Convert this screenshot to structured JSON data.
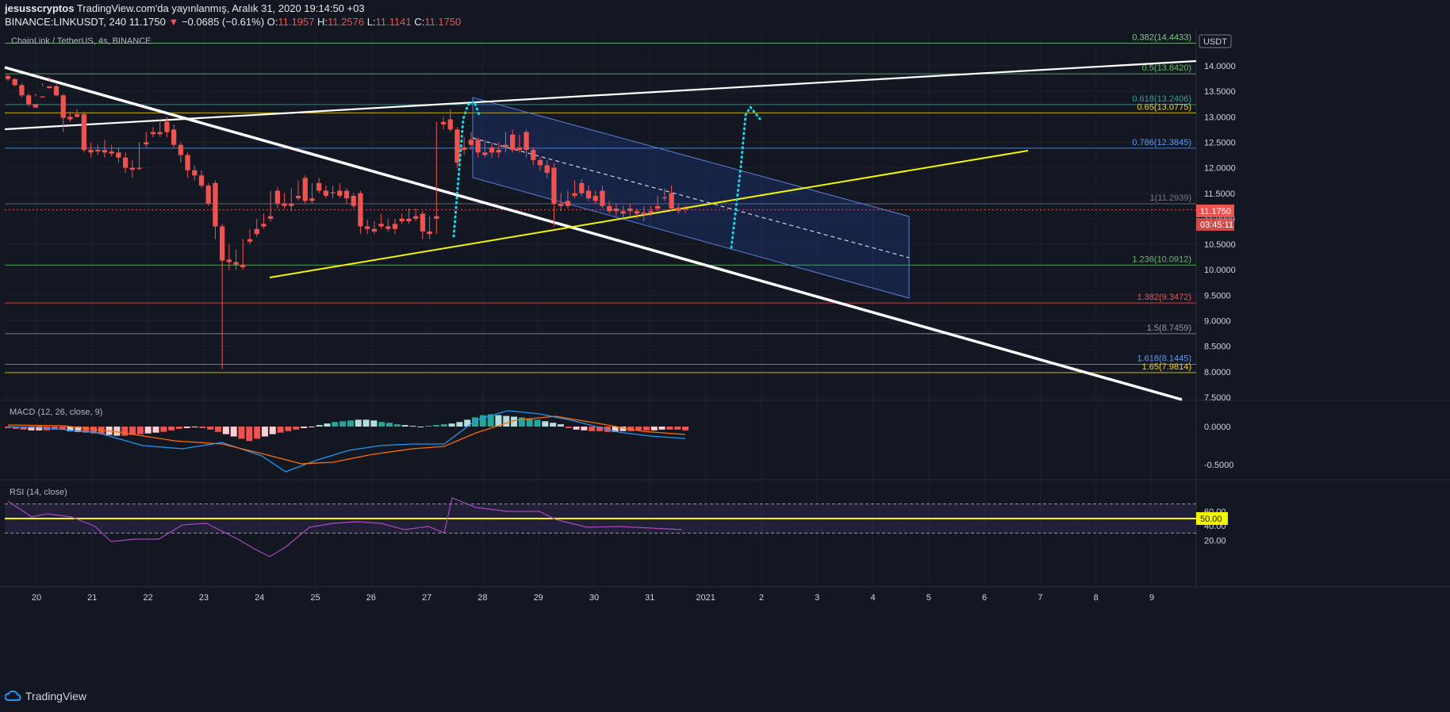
{
  "header": {
    "author": "jesusscryptos",
    "published": "TradingView.com'da yayınlanmış, Aralık 31, 2020 19:14:50 +03",
    "symbol": "BINANCE:LINKUSDT, 240",
    "last": "11.1750",
    "change": "−0.0685 (−0.61%)",
    "o_label": "O:",
    "o": "11.1957",
    "h_label": "H:",
    "h": "11.2576",
    "l_label": "L:",
    "l": "11.1141",
    "c_label": "C:",
    "c": "11.1750"
  },
  "footer": {
    "brand": "TradingView"
  },
  "chart_data": [
    {
      "type": "candlestick",
      "title": "ChainLink / TetherUS, 4s, BINANCE",
      "unit": "USDT",
      "ylim": [
        7.5,
        14.5
      ],
      "y_ticks": [
        "14.0000",
        "13.5000",
        "13.0000",
        "12.5000",
        "12.0000",
        "11.5000",
        "11.0000",
        "10.5000",
        "10.0000",
        "9.5000",
        "9.0000",
        "8.5000",
        "8.0000",
        "7.5000"
      ],
      "x_ticks": [
        {
          "label": "20",
          "day": 20
        },
        {
          "label": "21",
          "day": 21
        },
        {
          "label": "22",
          "day": 22
        },
        {
          "label": "23",
          "day": 23
        },
        {
          "label": "24",
          "day": 24
        },
        {
          "label": "25",
          "day": 25
        },
        {
          "label": "26",
          "day": 26
        },
        {
          "label": "27",
          "day": 27
        },
        {
          "label": "28",
          "day": 28
        },
        {
          "label": "29",
          "day": 29
        },
        {
          "label": "30",
          "day": 30
        },
        {
          "label": "31",
          "day": 31
        },
        {
          "label": "2021",
          "day": 32
        },
        {
          "label": "2",
          "day": 33
        },
        {
          "label": "3",
          "day": 34
        },
        {
          "label": "4",
          "day": 35
        },
        {
          "label": "5",
          "day": 36
        },
        {
          "label": "6",
          "day": 37
        },
        {
          "label": "7",
          "day": 38
        },
        {
          "label": "8",
          "day": 39
        },
        {
          "label": "9",
          "day": 40
        }
      ],
      "candles": [
        [
          13.8,
          13.84,
          13.74,
          13.7
        ],
        [
          13.74,
          13.76,
          13.62,
          13.6
        ],
        [
          13.62,
          13.66,
          13.42,
          13.38
        ],
        [
          13.42,
          13.46,
          13.25,
          13.2
        ],
        [
          13.25,
          13.45,
          13.18,
          13.4
        ],
        [
          13.4,
          13.66,
          13.38,
          13.6
        ],
        [
          13.6,
          13.78,
          13.56,
          13.7
        ],
        [
          13.6,
          13.64,
          13.42,
          13.4
        ],
        [
          13.42,
          13.45,
          12.98,
          12.7
        ],
        [
          13.0,
          13.1,
          12.95,
          12.9
        ],
        [
          13.05,
          13.15,
          13.0,
          12.98
        ],
        [
          13.05,
          13.1,
          12.35,
          12.3
        ],
        [
          12.35,
          12.5,
          12.3,
          12.2
        ],
        [
          12.35,
          12.45,
          12.32,
          12.25
        ],
        [
          12.35,
          12.55,
          12.3,
          12.2
        ],
        [
          12.32,
          12.45,
          12.28,
          12.22
        ],
        [
          12.3,
          12.4,
          12.2,
          12.1
        ],
        [
          12.2,
          12.3,
          12.0,
          11.9
        ],
        [
          12.0,
          12.15,
          11.96,
          11.8
        ],
        [
          12.0,
          12.5,
          11.98,
          11.95
        ],
        [
          12.5,
          12.7,
          12.46,
          12.4
        ],
        [
          12.7,
          12.8,
          12.66,
          12.6
        ],
        [
          12.7,
          12.95,
          12.66,
          12.6
        ],
        [
          12.9,
          13.0,
          12.7,
          12.6
        ],
        [
          12.75,
          12.85,
          12.45,
          12.4
        ],
        [
          12.45,
          12.5,
          12.25,
          12.1
        ],
        [
          12.25,
          12.3,
          11.95,
          11.8
        ],
        [
          11.95,
          12.05,
          11.85,
          11.75
        ],
        [
          11.85,
          11.95,
          11.65,
          11.6
        ],
        [
          11.65,
          11.7,
          11.3,
          11.25
        ],
        [
          11.7,
          11.75,
          10.85,
          10.6
        ],
        [
          10.85,
          10.9,
          10.18,
          8.05
        ],
        [
          10.2,
          10.5,
          10.15,
          10.0
        ],
        [
          10.15,
          10.4,
          10.1,
          10.0
        ],
        [
          10.1,
          10.6,
          10.05,
          10.0
        ],
        [
          10.6,
          10.8,
          10.55,
          10.5
        ],
        [
          10.8,
          11.0,
          10.7,
          10.65
        ],
        [
          10.9,
          11.1,
          10.85,
          10.8
        ],
        [
          11.05,
          11.55,
          11.0,
          10.95
        ],
        [
          11.55,
          11.62,
          11.3,
          11.2
        ],
        [
          11.3,
          11.5,
          11.25,
          11.2
        ],
        [
          11.3,
          11.6,
          11.25,
          11.15
        ],
        [
          11.45,
          11.75,
          11.4,
          11.35
        ],
        [
          11.8,
          11.85,
          11.35,
          11.3
        ],
        [
          11.4,
          11.7,
          11.35,
          11.3
        ],
        [
          11.7,
          11.8,
          11.55,
          11.5
        ],
        [
          11.55,
          11.65,
          11.45,
          11.4
        ],
        [
          11.52,
          11.65,
          11.5,
          11.4
        ],
        [
          11.55,
          11.7,
          11.45,
          11.4
        ],
        [
          11.55,
          11.6,
          11.4,
          11.3
        ],
        [
          11.45,
          11.5,
          11.25,
          11.2
        ],
        [
          11.5,
          11.55,
          10.85,
          10.7
        ],
        [
          10.85,
          10.98,
          10.8,
          10.7
        ],
        [
          10.8,
          10.95,
          10.75,
          10.7
        ],
        [
          10.9,
          11.1,
          10.85,
          10.8
        ],
        [
          10.85,
          11.0,
          10.8,
          10.75
        ],
        [
          10.9,
          11.0,
          10.8,
          10.7
        ],
        [
          11.0,
          11.1,
          10.95,
          10.9
        ],
        [
          11.0,
          11.2,
          10.95,
          10.9
        ],
        [
          11.05,
          11.2,
          11.0,
          10.95
        ],
        [
          11.1,
          11.15,
          10.75,
          10.6
        ],
        [
          10.75,
          11.05,
          10.7,
          10.6
        ],
        [
          11.05,
          12.9,
          11.0,
          10.7
        ],
        [
          12.9,
          13.0,
          12.85,
          12.75
        ],
        [
          12.95,
          13.15,
          12.75,
          12.7
        ],
        [
          12.75,
          12.8,
          12.1,
          12.0
        ],
        [
          12.4,
          12.6,
          12.35,
          12.25
        ],
        [
          12.55,
          12.7,
          12.45,
          12.35
        ],
        [
          12.55,
          12.6,
          12.3,
          12.2
        ],
        [
          12.3,
          12.55,
          12.25,
          12.2
        ],
        [
          12.4,
          12.5,
          12.3,
          12.2
        ],
        [
          12.35,
          12.5,
          12.3,
          12.2
        ],
        [
          12.45,
          12.7,
          12.4,
          12.3
        ],
        [
          12.65,
          12.75,
          12.35,
          12.3
        ],
        [
          12.4,
          12.65,
          12.35,
          12.3
        ],
        [
          12.7,
          12.75,
          12.35,
          12.2
        ],
        [
          12.35,
          12.4,
          12.15,
          12.05
        ],
        [
          12.15,
          12.2,
          12.05,
          11.95
        ],
        [
          12.05,
          12.15,
          11.9,
          11.8
        ],
        [
          12.0,
          12.1,
          11.3,
          10.85
        ],
        [
          11.3,
          11.5,
          11.25,
          11.15
        ],
        [
          11.35,
          11.55,
          11.25,
          11.2
        ],
        [
          11.5,
          11.75,
          11.45,
          11.4
        ],
        [
          11.7,
          11.78,
          11.5,
          11.45
        ],
        [
          11.55,
          11.65,
          11.4,
          11.35
        ],
        [
          11.45,
          11.55,
          11.35,
          11.3
        ],
        [
          11.55,
          11.65,
          11.25,
          11.2
        ],
        [
          11.25,
          11.35,
          11.15,
          11.1
        ],
        [
          11.2,
          11.3,
          11.15,
          11.05
        ],
        [
          11.15,
          11.25,
          11.1,
          11.0
        ],
        [
          11.2,
          11.3,
          11.15,
          11.05
        ],
        [
          11.15,
          11.2,
          11.1,
          11.0
        ],
        [
          11.12,
          11.25,
          11.08,
          10.95
        ],
        [
          11.15,
          11.25,
          11.12,
          11.05
        ],
        [
          11.25,
          11.45,
          11.2,
          11.15
        ],
        [
          11.42,
          11.6,
          11.4,
          11.35
        ],
        [
          11.5,
          11.65,
          11.2,
          11.15
        ],
        [
          11.22,
          11.3,
          11.15,
          11.1
        ],
        [
          11.2,
          11.26,
          11.18,
          11.11
        ]
      ],
      "fib_levels": [
        {
          "label": "0.382(14.4433)",
          "value": 14.4433,
          "color": "#81c784"
        },
        {
          "label": "0.5(13.8420)",
          "value": 13.842,
          "color": "#66bb6a"
        },
        {
          "label": "0.618(13.2406)",
          "value": 13.2406,
          "color": "#26a69a"
        },
        {
          "label": "0.65(13.0775)",
          "value": 13.0775,
          "color": "#f5d60f"
        },
        {
          "label": "0.786(12.3845)",
          "value": 12.3845,
          "color": "#5b9cf6"
        },
        {
          "label": "1(11.2939)",
          "value": 11.2939,
          "color": "#787b86"
        },
        {
          "label": "1.236(10.0912)",
          "value": 10.0912,
          "color": "#66bb6a"
        },
        {
          "label": "1.382(9.3472)",
          "value": 9.3472,
          "color": "#ef5350"
        },
        {
          "label": "1.5(8.7459)",
          "value": 8.7459,
          "color": "#9598a1"
        },
        {
          "label": "1.618(8.1445)",
          "value": 8.1445,
          "color": "#5b9cf6"
        },
        {
          "label": "1.65(7.9814)",
          "value": 7.9814,
          "color": "#f5d60f"
        }
      ],
      "price_label": "11.1750",
      "countdown_label": "03:45:11",
      "axis_unit_label": "USDT",
      "colors": {
        "up": "#26a69a",
        "down": "#ef5350",
        "background": "#131722"
      }
    },
    {
      "type": "line",
      "title": "MACD (12, 26, close, 9)",
      "ylim": [
        -0.75,
        0.25
      ],
      "y_ticks": [
        "0.0000",
        "-0.5000"
      ],
      "series": [],
      "colors": {
        "macd": "#2196f3",
        "signal": "#ff6d00"
      }
    },
    {
      "type": "line",
      "title": "RSI (14, close)",
      "ylim": [
        15,
        77
      ],
      "y_ticks": [
        "60.00",
        "40.00",
        "20.00"
      ],
      "level_label": "50.00",
      "bands": [
        70,
        30
      ],
      "colors": {
        "rsi": "#ab47bc",
        "level": "#f5f500"
      }
    }
  ]
}
